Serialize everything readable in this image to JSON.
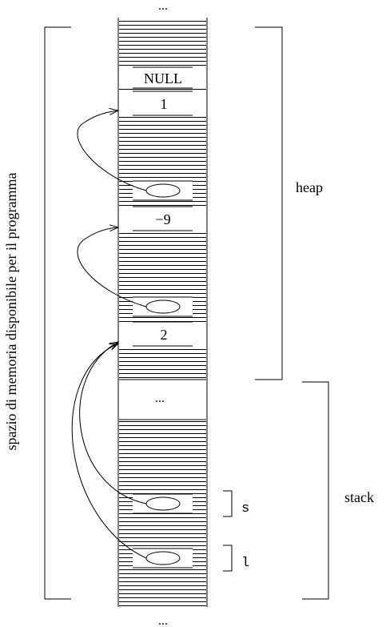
{
  "diagram": {
    "top_ellipsis": "...",
    "bottom_ellipsis": "...",
    "side_label": "spazio di memoria disponibile per il programma",
    "cells": {
      "null_value": "NULL",
      "node1_value": "1",
      "node2_value": "−9",
      "node3_value": "2",
      "stack_ellipsis": "..."
    },
    "regions": {
      "heap_label": "heap",
      "stack_label": "stack"
    },
    "variables": {
      "s_label": "s",
      "l_label": "l"
    },
    "colors": {
      "ink": "#000000",
      "background": "#ffffff"
    }
  }
}
